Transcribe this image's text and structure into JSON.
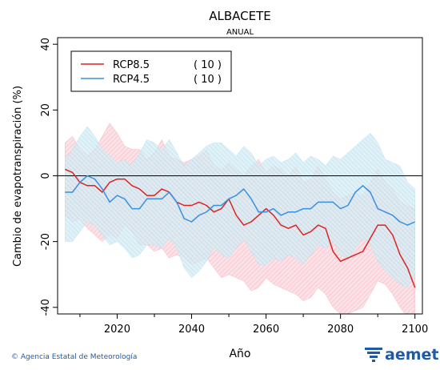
{
  "chart_data": {
    "type": "line",
    "title": "ALBACETE",
    "subtitle": "ANUAL",
    "xlabel": "Año",
    "ylabel": "Cambio de evapotranspiración (%)",
    "xlim": [
      2004,
      2102
    ],
    "ylim": [
      -42,
      42
    ],
    "xticks": [
      2020,
      2040,
      2060,
      2080,
      2100
    ],
    "yticks": [
      -40,
      -20,
      0,
      20,
      40
    ],
    "reference_line": 0,
    "legend_position": "top-left",
    "x": [
      2006,
      2008,
      2010,
      2012,
      2014,
      2016,
      2018,
      2020,
      2022,
      2024,
      2026,
      2028,
      2030,
      2032,
      2034,
      2036,
      2038,
      2040,
      2042,
      2044,
      2046,
      2048,
      2050,
      2052,
      2054,
      2056,
      2058,
      2060,
      2062,
      2064,
      2066,
      2068,
      2070,
      2072,
      2074,
      2076,
      2078,
      2080,
      2082,
      2084,
      2086,
      2088,
      2090,
      2092,
      2094,
      2096,
      2098,
      2100
    ],
    "series": [
      {
        "name": "RCP8.5",
        "count": "( 10 )",
        "color": "#dd2222",
        "band_color": "#f7b8c3",
        "values": [
          2,
          1,
          -2,
          -3,
          -3,
          -5,
          -2,
          -1,
          -1,
          -3,
          -4,
          -6,
          -6,
          -4,
          -5,
          -8,
          -9,
          -9,
          -8,
          -9,
          -11,
          -10,
          -7,
          -12,
          -15,
          -14,
          -12,
          -10,
          -12,
          -15,
          -16,
          -15,
          -18,
          -17,
          -15,
          -16,
          -23,
          -26,
          -25,
          -24,
          -23,
          -19,
          -15,
          -15,
          -18,
          -24,
          -28,
          -34
        ],
        "upper": [
          10,
          12,
          8,
          6,
          8,
          12,
          16,
          13,
          9,
          8,
          8,
          5,
          7,
          11,
          6,
          5,
          4,
          5,
          6,
          8,
          3,
          2,
          4,
          2,
          0,
          3,
          5,
          1,
          3,
          2,
          0,
          3,
          -2,
          -1,
          3,
          -1,
          -5,
          -7,
          -6,
          -5,
          -6,
          -2,
          2,
          -2,
          -4,
          -8,
          -9,
          -10
        ],
        "lower": [
          -12,
          -14,
          -13,
          -16,
          -18,
          -20,
          -18,
          -19,
          -15,
          -17,
          -21,
          -21,
          -23,
          -22,
          -25,
          -24,
          -25,
          -27,
          -26,
          -25,
          -28,
          -31,
          -30,
          -31,
          -32,
          -35,
          -34,
          -31,
          -33,
          -34,
          -35,
          -36,
          -38,
          -37,
          -34,
          -36,
          -40,
          -42,
          -42,
          -41,
          -40,
          -36,
          -32,
          -33,
          -36,
          -40,
          -43,
          -45
        ]
      },
      {
        "name": "RCP4.5",
        "count": "( 10 )",
        "color": "#3a8fe0",
        "band_color": "#bde3ef",
        "values": [
          -5,
          -5,
          -2,
          0,
          -1,
          -4,
          -8,
          -6,
          -7,
          -10,
          -10,
          -7,
          -7,
          -7,
          -5,
          -8,
          -13,
          -14,
          -12,
          -11,
          -9,
          -9,
          -7,
          -6,
          -4,
          -7,
          -11,
          -11,
          -10,
          -12,
          -11,
          -11,
          -10,
          -10,
          -8,
          -8,
          -8,
          -10,
          -9,
          -5,
          -3,
          -5,
          -10,
          -11,
          -12,
          -14,
          -15,
          -14
        ],
        "upper": [
          5,
          8,
          12,
          15,
          12,
          8,
          6,
          4,
          5,
          3,
          7,
          11,
          10,
          8,
          11,
          7,
          3,
          5,
          7,
          9,
          10,
          10,
          8,
          6,
          9,
          7,
          3,
          5,
          6,
          4,
          5,
          7,
          4,
          6,
          5,
          3,
          6,
          5,
          7,
          9,
          11,
          13,
          10,
          5,
          4,
          3,
          -2,
          -4
        ],
        "lower": [
          -20,
          -20,
          -17,
          -14,
          -15,
          -18,
          -21,
          -20,
          -22,
          -25,
          -24,
          -21,
          -21,
          -22,
          -19,
          -22,
          -28,
          -31,
          -29,
          -26,
          -22,
          -24,
          -25,
          -22,
          -19,
          -23,
          -27,
          -27,
          -25,
          -26,
          -24,
          -25,
          -27,
          -24,
          -21,
          -22,
          -20,
          -24,
          -25,
          -22,
          -19,
          -21,
          -26,
          -29,
          -31,
          -33,
          -34,
          -30
        ]
      }
    ]
  },
  "footer": {
    "credit": "© Agencia Estatal de Meteorología",
    "logo_text": "aemet"
  }
}
